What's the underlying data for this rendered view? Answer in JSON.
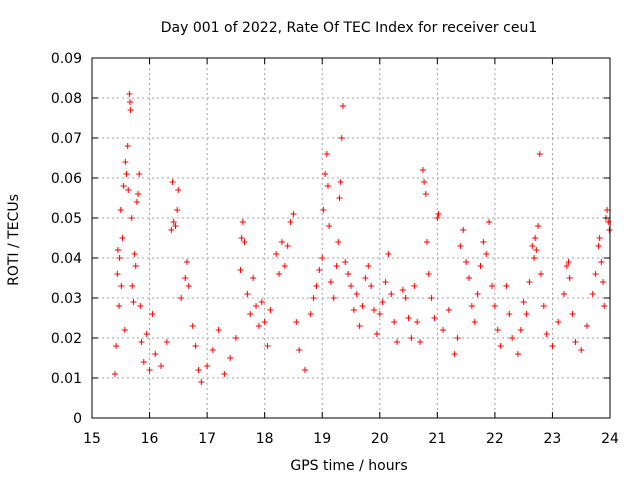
{
  "chart_data": {
    "type": "scatter",
    "title": "Day 001 of 2022, Rate Of TEC Index for receiver ceu1",
    "xlabel": "GPS time / hours",
    "ylabel": "ROTI / TECUs",
    "xlim": [
      15,
      24
    ],
    "ylim": [
      0,
      0.09
    ],
    "x_ticks": [
      15,
      16,
      17,
      18,
      19,
      20,
      21,
      22,
      23,
      24
    ],
    "y_ticks": [
      0,
      0.01,
      0.02,
      0.03,
      0.04,
      0.05,
      0.06,
      0.07,
      0.08,
      0.09
    ],
    "x_tick_labels": [
      "15",
      "16",
      "17",
      "18",
      "19",
      "20",
      "21",
      "22",
      "23",
      "24"
    ],
    "y_tick_labels": [
      "0",
      "0.01",
      "0.02",
      "0.03",
      "0.04",
      "0.05",
      "0.06",
      "0.07",
      "0.08",
      "0.09"
    ],
    "grid": true,
    "marker": "+",
    "color": "#ff0000",
    "series": [
      {
        "name": "ceu1 ROTI",
        "points": [
          [
            15.4,
            0.011
          ],
          [
            15.42,
            0.018
          ],
          [
            15.44,
            0.036
          ],
          [
            15.45,
            0.042
          ],
          [
            15.47,
            0.028
          ],
          [
            15.48,
            0.04
          ],
          [
            15.5,
            0.052
          ],
          [
            15.51,
            0.033
          ],
          [
            15.53,
            0.045
          ],
          [
            15.55,
            0.058
          ],
          [
            15.57,
            0.022
          ],
          [
            15.58,
            0.064
          ],
          [
            15.6,
            0.061
          ],
          [
            15.62,
            0.068
          ],
          [
            15.63,
            0.057
          ],
          [
            15.65,
            0.081
          ],
          [
            15.66,
            0.079
          ],
          [
            15.67,
            0.077
          ],
          [
            15.69,
            0.05
          ],
          [
            15.7,
            0.033
          ],
          [
            15.72,
            0.029
          ],
          [
            15.74,
            0.041
          ],
          [
            15.76,
            0.038
          ],
          [
            15.78,
            0.054
          ],
          [
            15.8,
            0.056
          ],
          [
            15.82,
            0.061
          ],
          [
            15.84,
            0.028
          ],
          [
            15.86,
            0.019
          ],
          [
            15.9,
            0.014
          ],
          [
            15.95,
            0.021
          ],
          [
            16.0,
            0.012
          ],
          [
            16.05,
            0.026
          ],
          [
            16.1,
            0.016
          ],
          [
            16.2,
            0.013
          ],
          [
            16.3,
            0.019
          ],
          [
            16.38,
            0.047
          ],
          [
            16.4,
            0.059
          ],
          [
            16.42,
            0.049
          ],
          [
            16.45,
            0.048
          ],
          [
            16.48,
            0.052
          ],
          [
            16.5,
            0.057
          ],
          [
            16.55,
            0.03
          ],
          [
            16.62,
            0.035
          ],
          [
            16.65,
            0.039
          ],
          [
            16.68,
            0.033
          ],
          [
            16.75,
            0.023
          ],
          [
            16.8,
            0.018
          ],
          [
            16.85,
            0.012
          ],
          [
            16.9,
            0.009
          ],
          [
            17.0,
            0.013
          ],
          [
            17.1,
            0.017
          ],
          [
            17.2,
            0.022
          ],
          [
            17.3,
            0.011
          ],
          [
            17.4,
            0.015
          ],
          [
            17.5,
            0.02
          ],
          [
            17.58,
            0.037
          ],
          [
            17.6,
            0.045
          ],
          [
            17.62,
            0.049
          ],
          [
            17.65,
            0.044
          ],
          [
            17.7,
            0.031
          ],
          [
            17.75,
            0.026
          ],
          [
            17.8,
            0.035
          ],
          [
            17.85,
            0.028
          ],
          [
            17.9,
            0.023
          ],
          [
            17.95,
            0.029
          ],
          [
            18.0,
            0.024
          ],
          [
            18.05,
            0.018
          ],
          [
            18.1,
            0.027
          ],
          [
            18.2,
            0.041
          ],
          [
            18.25,
            0.036
          ],
          [
            18.3,
            0.044
          ],
          [
            18.35,
            0.038
          ],
          [
            18.4,
            0.043
          ],
          [
            18.45,
            0.049
          ],
          [
            18.5,
            0.051
          ],
          [
            18.55,
            0.024
          ],
          [
            18.6,
            0.017
          ],
          [
            18.7,
            0.012
          ],
          [
            18.8,
            0.026
          ],
          [
            18.85,
            0.03
          ],
          [
            18.9,
            0.033
          ],
          [
            18.95,
            0.037
          ],
          [
            19.0,
            0.04
          ],
          [
            19.02,
            0.052
          ],
          [
            19.05,
            0.061
          ],
          [
            19.08,
            0.066
          ],
          [
            19.1,
            0.058
          ],
          [
            19.12,
            0.048
          ],
          [
            19.15,
            0.034
          ],
          [
            19.2,
            0.03
          ],
          [
            19.25,
            0.038
          ],
          [
            19.28,
            0.044
          ],
          [
            19.3,
            0.055
          ],
          [
            19.32,
            0.059
          ],
          [
            19.34,
            0.07
          ],
          [
            19.36,
            0.078
          ],
          [
            19.4,
            0.039
          ],
          [
            19.45,
            0.036
          ],
          [
            19.5,
            0.033
          ],
          [
            19.55,
            0.027
          ],
          [
            19.6,
            0.031
          ],
          [
            19.65,
            0.023
          ],
          [
            19.7,
            0.028
          ],
          [
            19.75,
            0.035
          ],
          [
            19.8,
            0.038
          ],
          [
            19.85,
            0.033
          ],
          [
            19.9,
            0.027
          ],
          [
            19.95,
            0.021
          ],
          [
            20.0,
            0.026
          ],
          [
            20.05,
            0.029
          ],
          [
            20.1,
            0.034
          ],
          [
            20.15,
            0.041
          ],
          [
            20.2,
            0.031
          ],
          [
            20.25,
            0.024
          ],
          [
            20.3,
            0.019
          ],
          [
            20.4,
            0.032
          ],
          [
            20.45,
            0.03
          ],
          [
            20.5,
            0.025
          ],
          [
            20.55,
            0.02
          ],
          [
            20.6,
            0.033
          ],
          [
            20.65,
            0.024
          ],
          [
            20.7,
            0.019
          ],
          [
            20.75,
            0.062
          ],
          [
            20.77,
            0.059
          ],
          [
            20.8,
            0.056
          ],
          [
            20.82,
            0.044
          ],
          [
            20.85,
            0.036
          ],
          [
            20.9,
            0.03
          ],
          [
            20.95,
            0.025
          ],
          [
            21.0,
            0.05
          ],
          [
            21.02,
            0.051
          ],
          [
            21.1,
            0.022
          ],
          [
            21.2,
            0.027
          ],
          [
            21.3,
            0.016
          ],
          [
            21.35,
            0.02
          ],
          [
            21.4,
            0.043
          ],
          [
            21.45,
            0.047
          ],
          [
            21.5,
            0.039
          ],
          [
            21.55,
            0.035
          ],
          [
            21.6,
            0.028
          ],
          [
            21.65,
            0.024
          ],
          [
            21.7,
            0.031
          ],
          [
            21.75,
            0.038
          ],
          [
            21.8,
            0.044
          ],
          [
            21.85,
            0.041
          ],
          [
            21.9,
            0.049
          ],
          [
            21.95,
            0.033
          ],
          [
            22.0,
            0.028
          ],
          [
            22.05,
            0.022
          ],
          [
            22.1,
            0.018
          ],
          [
            22.2,
            0.033
          ],
          [
            22.25,
            0.026
          ],
          [
            22.3,
            0.02
          ],
          [
            22.4,
            0.016
          ],
          [
            22.45,
            0.022
          ],
          [
            22.5,
            0.029
          ],
          [
            22.55,
            0.026
          ],
          [
            22.6,
            0.034
          ],
          [
            22.65,
            0.043
          ],
          [
            22.68,
            0.04
          ],
          [
            22.7,
            0.045
          ],
          [
            22.72,
            0.042
          ],
          [
            22.75,
            0.048
          ],
          [
            22.78,
            0.066
          ],
          [
            22.8,
            0.036
          ],
          [
            22.85,
            0.028
          ],
          [
            22.9,
            0.021
          ],
          [
            23.0,
            0.018
          ],
          [
            23.1,
            0.024
          ],
          [
            23.2,
            0.031
          ],
          [
            23.25,
            0.038
          ],
          [
            23.28,
            0.039
          ],
          [
            23.3,
            0.035
          ],
          [
            23.35,
            0.026
          ],
          [
            23.4,
            0.019
          ],
          [
            23.5,
            0.017
          ],
          [
            23.6,
            0.023
          ],
          [
            23.7,
            0.031
          ],
          [
            23.75,
            0.036
          ],
          [
            23.8,
            0.043
          ],
          [
            23.82,
            0.045
          ],
          [
            23.85,
            0.039
          ],
          [
            23.88,
            0.034
          ],
          [
            23.9,
            0.028
          ],
          [
            23.93,
            0.05
          ],
          [
            23.95,
            0.052
          ],
          [
            23.97,
            0.049
          ],
          [
            23.99,
            0.047
          ]
        ]
      }
    ]
  }
}
